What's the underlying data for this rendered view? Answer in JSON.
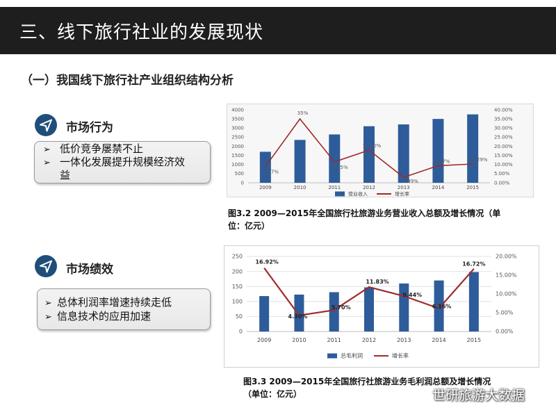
{
  "header": {
    "title": "三、线下旅行社业的发展现状"
  },
  "section": {
    "title": "（一）我国线下旅行社产业组织结构分析"
  },
  "block1": {
    "heading": "市场行为",
    "bullets": [
      {
        "mark": "➢",
        "text": "低价竞争屡禁不止"
      },
      {
        "mark": "➢",
        "text": "一体化发展提升规模经济效"
      },
      {
        "mark": "",
        "text": "益"
      }
    ]
  },
  "block2": {
    "heading": "市场绩效",
    "bullets": [
      {
        "mark": "➢",
        "text": "总体利润率增速持续走低"
      },
      {
        "mark": "➢",
        "text": "信息技术的应用加速"
      }
    ]
  },
  "captions": {
    "chart1": [
      "图3.2 2009—2015年全国旅行社旅游业务营业收入总额及增长情况（单",
      "位：亿元）"
    ],
    "chart2": [
      "图3.3 2009—2015年全国旅行社旅游业务毛利润总额及增长情况",
      "（单位：亿元）"
    ]
  },
  "watermark": {
    "text": "世研旅游大数据"
  },
  "colors": {
    "bar": "#2e5c9a",
    "line": "#9e2b2b",
    "header": "#1e1e1e",
    "icon": "#1f4e79"
  },
  "chart_data": [
    {
      "type": "bar",
      "categories": [
        "2009",
        "2010",
        "2011",
        "2012",
        "2013",
        "2014",
        "2015"
      ],
      "series": [
        {
          "name": "营业收入",
          "type": "bar",
          "axis": "left",
          "values": [
            1700,
            2350,
            2650,
            3100,
            3200,
            3500,
            3750
          ]
        },
        {
          "name": "增长率",
          "type": "line",
          "axis": "right",
          "values": [
            8.87,
            35,
            11.45,
            17.9,
            2.99,
            9.37,
            10.29
          ]
        }
      ],
      "data_labels": [
        "8.87%",
        "35%",
        "11.45%",
        "17.90%",
        "2.99%",
        "9.37%",
        "10.29%"
      ],
      "ylim": [
        0,
        4000
      ],
      "yticks": [
        "0",
        "500",
        "1000",
        "1500",
        "2000",
        "2500",
        "3000",
        "3500",
        "4000"
      ],
      "y2lim": [
        0,
        40
      ],
      "y2ticks": [
        "0.00%",
        "5.00%",
        "10.00%",
        "15.00%",
        "20.00%",
        "25.00%",
        "30.00%",
        "35.00%",
        "40.00%"
      ],
      "legend_position": "bottom"
    },
    {
      "type": "bar",
      "categories": [
        "2009",
        "2010",
        "2011",
        "2012",
        "2013",
        "2014",
        "2015"
      ],
      "series": [
        {
          "name": "总毛利润",
          "type": "bar",
          "axis": "left",
          "values": [
            118,
            123,
            131,
            147,
            160,
            170,
            198
          ]
        },
        {
          "name": "增长率",
          "type": "line",
          "axis": "right",
          "values": [
            16.92,
            4.3,
            5.7,
            11.83,
            9.44,
            6.16,
            16.72
          ]
        }
      ],
      "data_labels": [
        "16.92%",
        "4.30%",
        "5.70%",
        "11.83%",
        "9.44%",
        "6.16%",
        "16.72%"
      ],
      "ylim": [
        0,
        250
      ],
      "yticks": [
        "0",
        "50",
        "100",
        "150",
        "200",
        "250"
      ],
      "y2lim": [
        0,
        20
      ],
      "y2ticks": [
        "0.00%",
        "5.00%",
        "10.00%",
        "15.00%",
        "20.00%"
      ],
      "legend_position": "bottom"
    }
  ]
}
